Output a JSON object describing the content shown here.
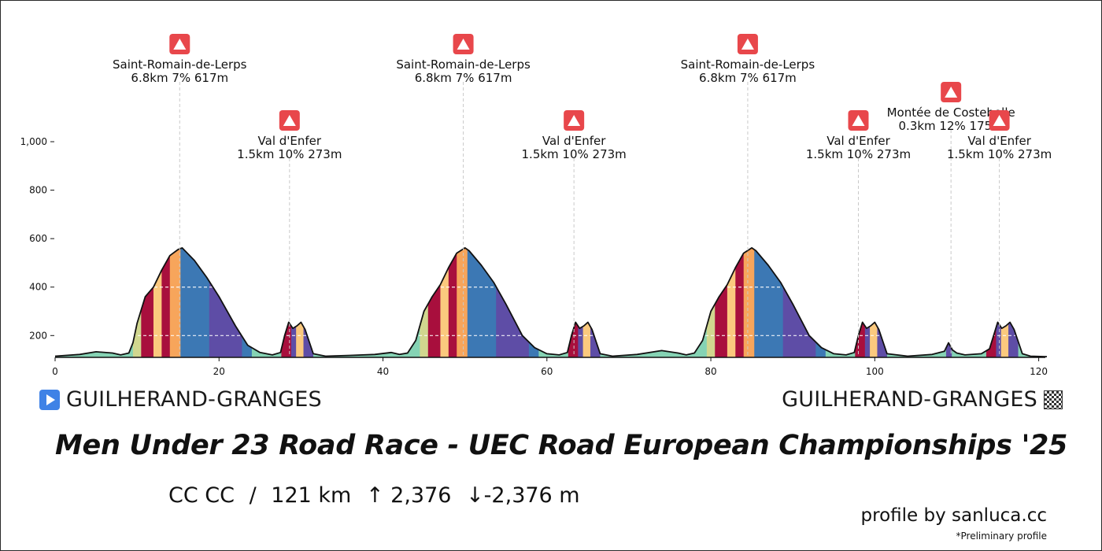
{
  "route": {
    "start": "GUILHERAND-GRANGES",
    "finish": "GUILHERAND-GRANGES"
  },
  "title": "Men Under 23 Road Race - UEC Road European Championships '25",
  "stats": {
    "category": "CC CC",
    "separator": "/",
    "distance": "121 km",
    "ascent": "↑ 2,376",
    "descent": "↓-2,376 m"
  },
  "credit": "profile by sanluca.cc",
  "note": "*Preliminary profile",
  "chart_data": {
    "type": "area",
    "xlim": [
      0,
      121
    ],
    "ylim": [
      110,
      1130
    ],
    "x_ticks": [
      0,
      20,
      40,
      60,
      80,
      100,
      120
    ],
    "y_ticks": [
      200,
      400,
      600,
      800,
      1000
    ],
    "y_tick_labels": [
      "200",
      "400",
      "600",
      "800",
      "1,000"
    ],
    "profile_km": [
      0,
      3,
      5,
      7,
      8,
      9,
      9.5,
      10,
      11,
      12,
      13,
      14,
      15,
      15.5,
      17,
      18.5,
      20,
      22,
      23.5,
      25,
      26.5,
      27.5,
      28,
      28.5,
      29,
      29.5,
      30,
      30.5,
      31,
      31.5,
      33,
      36,
      39,
      41,
      42,
      43,
      44,
      44.5,
      45,
      46,
      47,
      48,
      49,
      50,
      50.5,
      52,
      53.5,
      55,
      57,
      58.5,
      60,
      61.5,
      62.5,
      63,
      63.5,
      64,
      64.5,
      65,
      65.5,
      66,
      66.5,
      68,
      71,
      74,
      76,
      77,
      78,
      79,
      79.5,
      80,
      81,
      82,
      83,
      84,
      85,
      85.5,
      87,
      88.5,
      90,
      92,
      93.5,
      95,
      96.5,
      97.5,
      98,
      98.5,
      99,
      99.5,
      100,
      100.5,
      101,
      101.5,
      104,
      107,
      108.5,
      109,
      109.5,
      110,
      111,
      113,
      114,
      114.5,
      115,
      115.5,
      116,
      116.5,
      117,
      117.5,
      118,
      119,
      121
    ],
    "profile_elev": [
      115,
      122,
      133,
      128,
      120,
      128,
      170,
      250,
      360,
      400,
      470,
      530,
      555,
      562,
      510,
      440,
      360,
      240,
      160,
      130,
      120,
      130,
      200,
      255,
      230,
      240,
      255,
      225,
      175,
      125,
      115,
      118,
      122,
      130,
      122,
      128,
      180,
      240,
      300,
      360,
      410,
      480,
      540,
      562,
      550,
      490,
      420,
      330,
      200,
      150,
      125,
      120,
      130,
      200,
      255,
      230,
      240,
      255,
      225,
      175,
      125,
      115,
      122,
      138,
      128,
      120,
      128,
      180,
      240,
      300,
      360,
      410,
      480,
      540,
      562,
      550,
      490,
      420,
      330,
      200,
      150,
      125,
      120,
      130,
      200,
      255,
      230,
      240,
      255,
      225,
      175,
      125,
      115,
      122,
      135,
      170,
      140,
      128,
      120,
      125,
      145,
      200,
      255,
      230,
      240,
      255,
      225,
      175,
      125,
      115,
      113
    ],
    "gradient_bands": [
      {
        "from": 0,
        "to": 9.5,
        "color": "#85d3b4"
      },
      {
        "from": 9.5,
        "to": 10.5,
        "color": "#d1d78f"
      },
      {
        "from": 10.5,
        "to": 12,
        "color": "#a80f3d"
      },
      {
        "from": 12,
        "to": 13,
        "color": "#fbc97e"
      },
      {
        "from": 13,
        "to": 14,
        "color": "#a80f3d"
      },
      {
        "from": 14,
        "to": 15.3,
        "color": "#f7a55b"
      },
      {
        "from": 15.3,
        "to": 18.8,
        "color": "#3c78b4"
      },
      {
        "from": 18.8,
        "to": 22.8,
        "color": "#5e4da6"
      },
      {
        "from": 22.8,
        "to": 24,
        "color": "#3c78b4"
      },
      {
        "from": 24,
        "to": 27.6,
        "color": "#85d3b4"
      },
      {
        "from": 27.6,
        "to": 28.8,
        "color": "#a80f3d"
      },
      {
        "from": 28.8,
        "to": 29.4,
        "color": "#5e4da6"
      },
      {
        "from": 29.4,
        "to": 30.3,
        "color": "#fbc97e"
      },
      {
        "from": 30.3,
        "to": 31.5,
        "color": "#5e4da6"
      },
      {
        "from": 31.5,
        "to": 44.5,
        "color": "#85d3b4"
      },
      {
        "from": 44.5,
        "to": 45.5,
        "color": "#d1d78f"
      },
      {
        "from": 45.5,
        "to": 47,
        "color": "#a80f3d"
      },
      {
        "from": 47,
        "to": 48,
        "color": "#fbc97e"
      },
      {
        "from": 48,
        "to": 49,
        "color": "#a80f3d"
      },
      {
        "from": 49,
        "to": 50.3,
        "color": "#f7a55b"
      },
      {
        "from": 50.3,
        "to": 53.8,
        "color": "#3c78b4"
      },
      {
        "from": 53.8,
        "to": 57.8,
        "color": "#5e4da6"
      },
      {
        "from": 57.8,
        "to": 59,
        "color": "#3c78b4"
      },
      {
        "from": 59,
        "to": 62.6,
        "color": "#85d3b4"
      },
      {
        "from": 62.6,
        "to": 63.8,
        "color": "#a80f3d"
      },
      {
        "from": 63.8,
        "to": 64.4,
        "color": "#5e4da6"
      },
      {
        "from": 64.4,
        "to": 65.3,
        "color": "#fbc97e"
      },
      {
        "from": 65.3,
        "to": 66.5,
        "color": "#5e4da6"
      },
      {
        "from": 66.5,
        "to": 79.5,
        "color": "#85d3b4"
      },
      {
        "from": 79.5,
        "to": 80.5,
        "color": "#d1d78f"
      },
      {
        "from": 80.5,
        "to": 82,
        "color": "#a80f3d"
      },
      {
        "from": 82,
        "to": 83,
        "color": "#fbc97e"
      },
      {
        "from": 83,
        "to": 84,
        "color": "#a80f3d"
      },
      {
        "from": 84,
        "to": 85.3,
        "color": "#f7a55b"
      },
      {
        "from": 85.3,
        "to": 88.8,
        "color": "#3c78b4"
      },
      {
        "from": 88.8,
        "to": 92.8,
        "color": "#5e4da6"
      },
      {
        "from": 92.8,
        "to": 94,
        "color": "#3c78b4"
      },
      {
        "from": 94,
        "to": 97.6,
        "color": "#85d3b4"
      },
      {
        "from": 97.6,
        "to": 98.8,
        "color": "#a80f3d"
      },
      {
        "from": 98.8,
        "to": 99.4,
        "color": "#5e4da6"
      },
      {
        "from": 99.4,
        "to": 100.3,
        "color": "#fbc97e"
      },
      {
        "from": 100.3,
        "to": 101.5,
        "color": "#5e4da6"
      },
      {
        "from": 101.5,
        "to": 108.7,
        "color": "#85d3b4"
      },
      {
        "from": 108.7,
        "to": 109.4,
        "color": "#5e4da6"
      },
      {
        "from": 109.4,
        "to": 113.6,
        "color": "#85d3b4"
      },
      {
        "from": 113.6,
        "to": 114.8,
        "color": "#a80f3d"
      },
      {
        "from": 114.8,
        "to": 115.4,
        "color": "#5e4da6"
      },
      {
        "from": 115.4,
        "to": 116.3,
        "color": "#fbc97e"
      },
      {
        "from": 116.3,
        "to": 117.5,
        "color": "#5e4da6"
      },
      {
        "from": 117.5,
        "to": 121,
        "color": "#85d3b4"
      }
    ],
    "climbs": [
      {
        "name": "Saint-Romain-de-Lerps",
        "stats": "6.8km 7% 617m",
        "km": 15.2,
        "level": 0
      },
      {
        "name": "Val d'Enfer",
        "stats": "1.5km 10% 273m",
        "km": 28.6,
        "level": 1
      },
      {
        "name": "Saint-Romain-de-Lerps",
        "stats": "6.8km 7% 617m",
        "km": 49.8,
        "level": 0
      },
      {
        "name": "Val d'Enfer",
        "stats": "1.5km 10% 273m",
        "km": 63.3,
        "level": 1
      },
      {
        "name": "Saint-Romain-de-Lerps",
        "stats": "6.8km 7% 617m",
        "km": 84.5,
        "level": 0
      },
      {
        "name": "Val d'Enfer",
        "stats": "1.5km 10% 273m",
        "km": 98.0,
        "level": 1
      },
      {
        "name": "Montée de Costebelle",
        "stats": "0.3km 12% 175m",
        "km": 109.3,
        "level": 2
      },
      {
        "name": "Val d'Enfer",
        "stats": "1.5km 10% 273m",
        "km": 115.2,
        "level": 1
      }
    ],
    "colors": {
      "outline": "#111111",
      "climb_marker": "#e8474b",
      "guide": "#c9c9c9",
      "gridline": "#ffffff"
    }
  }
}
